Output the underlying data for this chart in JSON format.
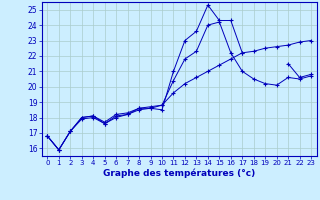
{
  "title": "Graphe des températures (°c)",
  "bg_color": "#cceeff",
  "grid_color": "#aacccc",
  "line_color": "#0000bb",
  "xlim": [
    -0.5,
    23.5
  ],
  "ylim": [
    15.5,
    25.5
  ],
  "xticks": [
    0,
    1,
    2,
    3,
    4,
    5,
    6,
    7,
    8,
    9,
    10,
    11,
    12,
    13,
    14,
    15,
    16,
    17,
    18,
    19,
    20,
    21,
    22,
    23
  ],
  "yticks": [
    16,
    17,
    18,
    19,
    20,
    21,
    22,
    23,
    24,
    25
  ],
  "series1": {
    "x": [
      0,
      1,
      2,
      3,
      4,
      5,
      6,
      7,
      8,
      9,
      10,
      11,
      12,
      13,
      14,
      15,
      16,
      17,
      18,
      19,
      20,
      21,
      22,
      23
    ],
    "y": [
      16.8,
      15.9,
      17.1,
      18.0,
      18.1,
      17.6,
      18.1,
      18.2,
      18.6,
      18.6,
      18.5,
      21.0,
      23.0,
      23.6,
      25.3,
      24.3,
      24.3,
      22.2,
      null,
      null,
      null,
      21.5,
      20.6,
      20.8
    ]
  },
  "series2": {
    "x": [
      0,
      1,
      2,
      3,
      4,
      5,
      6,
      7,
      8,
      9,
      10,
      11,
      12,
      13,
      14,
      15,
      16,
      17,
      18,
      19,
      20,
      21,
      22,
      23
    ],
    "y": [
      16.8,
      15.9,
      17.1,
      18.0,
      18.1,
      17.7,
      18.2,
      18.3,
      18.6,
      18.7,
      18.8,
      20.4,
      21.8,
      22.3,
      24.0,
      24.2,
      22.2,
      21.0,
      20.5,
      20.2,
      20.1,
      20.6,
      20.5,
      20.7
    ]
  },
  "series3": {
    "x": [
      0,
      1,
      2,
      3,
      4,
      5,
      6,
      7,
      8,
      9,
      10,
      11,
      12,
      13,
      14,
      15,
      16,
      17,
      18,
      19,
      20,
      21,
      22,
      23
    ],
    "y": [
      16.8,
      15.9,
      17.1,
      17.9,
      18.0,
      17.6,
      18.0,
      18.2,
      18.5,
      18.6,
      18.8,
      19.6,
      20.2,
      20.6,
      21.0,
      21.4,
      21.8,
      22.2,
      22.3,
      22.5,
      22.6,
      22.7,
      22.9,
      23.0
    ]
  }
}
